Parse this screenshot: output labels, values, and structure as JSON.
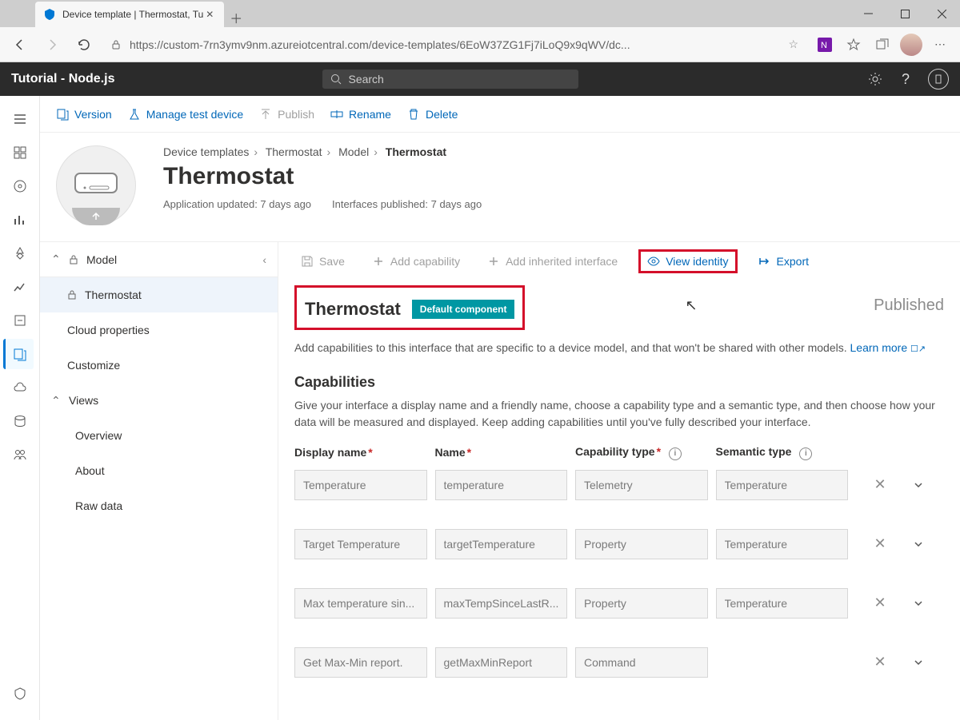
{
  "browser": {
    "tab_title": "Device template | Thermostat, Tu",
    "url": "https://custom-7rn3ymv9nm.azureiotcentral.com/device-templates/6EoW37ZG1Fj7iLoQ9x9qWV/dc..."
  },
  "app_header": {
    "title": "Tutorial - Node.js",
    "search_placeholder": "Search"
  },
  "toolbar": {
    "version": "Version",
    "manage_test": "Manage test device",
    "publish": "Publish",
    "rename": "Rename",
    "delete": "Delete"
  },
  "breadcrumbs": {
    "items": [
      "Device templates",
      "Thermostat",
      "Model"
    ],
    "current": "Thermostat"
  },
  "hero": {
    "title": "Thermostat",
    "meta_app": "Application updated: 7 days ago",
    "meta_if": "Interfaces published: 7 days ago"
  },
  "tree": {
    "model": "Model",
    "thermostat": "Thermostat",
    "cloud": "Cloud properties",
    "customize": "Customize",
    "views": "Views",
    "overview": "Overview",
    "about": "About",
    "raw": "Raw data"
  },
  "content_toolbar": {
    "save": "Save",
    "add_cap": "Add capability",
    "add_inherited": "Add inherited interface",
    "view_identity": "View identity",
    "export": "Export"
  },
  "section": {
    "title": "Thermostat",
    "badge": "Default component",
    "status": "Published",
    "help": "Add capabilities to this interface that are specific to a device model, and that won't be shared with other models.",
    "learn_more": "Learn more"
  },
  "capabilities": {
    "heading": "Capabilities",
    "help": "Give your interface a display name and a friendly name, choose a capability type and a semantic type, and then choose how your data will be measured and displayed. Keep adding capabilities until you've fully described your interface.",
    "headers": {
      "display_name": "Display name",
      "name": "Name",
      "cap_type": "Capability type",
      "sem_type": "Semantic type"
    },
    "rows": [
      {
        "display": "Temperature",
        "name": "temperature",
        "type": "Telemetry",
        "semantic": "Temperature"
      },
      {
        "display": "Target Temperature",
        "name": "targetTemperature",
        "type": "Property",
        "semantic": "Temperature"
      },
      {
        "display": "Max temperature sin...",
        "name": "maxTempSinceLastR...",
        "type": "Property",
        "semantic": "Temperature"
      },
      {
        "display": "Get Max-Min report.",
        "name": "getMaxMinReport",
        "type": "Command",
        "semantic": ""
      }
    ]
  }
}
